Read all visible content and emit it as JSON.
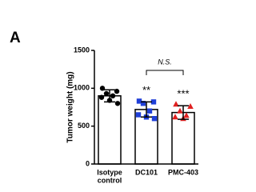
{
  "chart_data": {
    "type": "bar",
    "panel_label": "A",
    "ylabel": "Tumor weight (mg)",
    "categories": [
      [
        "Isotype",
        "control"
      ],
      [
        "DC101"
      ],
      [
        "PMC-403"
      ]
    ],
    "values": [
      900,
      720,
      680
    ],
    "errors": [
      80,
      100,
      90
    ],
    "points": [
      [
        1000,
        960,
        930,
        900,
        880,
        840,
        800
      ],
      [
        830,
        820,
        800,
        700,
        650,
        620,
        600
      ],
      [
        790,
        760,
        700,
        640,
        620,
        600
      ]
    ],
    "point_colors": [
      "#000000",
      "#1f3fd8",
      "#e02020"
    ],
    "point_markers": [
      "circle",
      "square",
      "triangle"
    ],
    "value_annotations": [
      null,
      "**",
      "***"
    ],
    "bracket": {
      "from": 1,
      "to": 2,
      "label": "N.S."
    },
    "ylim": [
      0,
      1500
    ],
    "yticks": [
      0,
      500,
      1000,
      1500
    ]
  }
}
